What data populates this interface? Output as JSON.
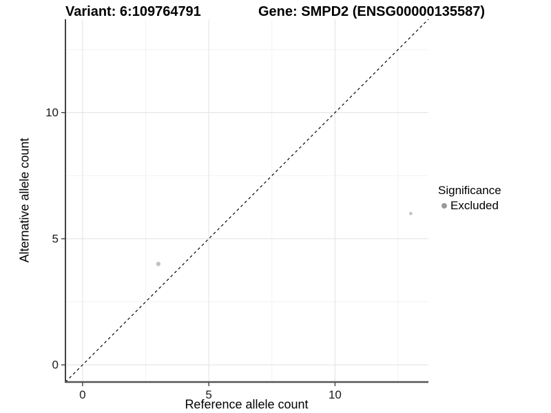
{
  "colors": {
    "background": "#ffffff",
    "point": "#c2c2c2",
    "legend_dot": "#9a9a9a",
    "grid_major": "#e4e4e4",
    "grid_minor": "#f2f2f2",
    "axis_line_x": "#555555",
    "axis_line_y": "#111111",
    "tick_mark": "#333333",
    "tick_label": "#1a1a1a",
    "identity_line": "#000000"
  },
  "chart_data": {
    "type": "scatter",
    "titles": {
      "left": "Variant: 6:109764791",
      "right": "Gene: SMPD2 (ENSG00000135587)"
    },
    "xlabel": "Reference allele count",
    "ylabel": "Alternative allele count",
    "xlim": [
      -0.68,
      13.7
    ],
    "ylim": [
      -0.68,
      13.7
    ],
    "xticks": [
      0,
      5,
      10
    ],
    "yticks": [
      0,
      5,
      10
    ],
    "minor_gridlines": [
      2.5,
      7.5,
      12.5
    ],
    "grid": "major and minor, light gray on white",
    "identity_line": {
      "slope": 1,
      "intercept": 0,
      "style": "dashed",
      "color": "#000000"
    },
    "series": [
      {
        "name": "Excluded",
        "color": "#c2c2c2",
        "points": [
          {
            "x": 3,
            "y": 4,
            "r": 3.2
          },
          {
            "x": 13,
            "y": 6,
            "r": 2.4
          }
        ]
      }
    ],
    "legend": {
      "title": "Significance",
      "position": "right",
      "entries": [
        {
          "label": "Excluded",
          "color": "#9a9a9a"
        }
      ]
    }
  }
}
